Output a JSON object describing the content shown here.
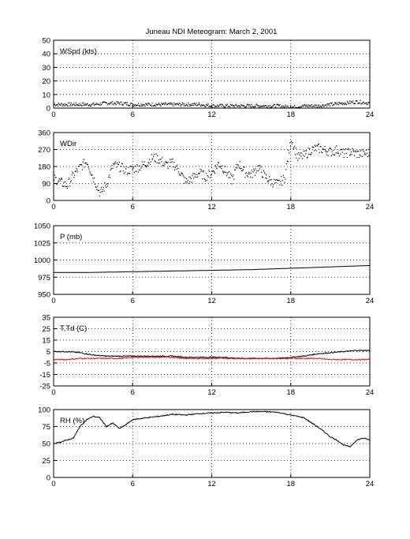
{
  "figure": {
    "title": "Juneau NDI Meteogram:       March  2, 2001"
  },
  "chart_data": [
    {
      "type": "scatter",
      "panel": "wind-speed",
      "label": "WSpd (kts)",
      "xlim": [
        0,
        24
      ],
      "ylim": [
        0,
        50
      ],
      "x_ticks": [
        0,
        6,
        12,
        18,
        24
      ],
      "y_ticks": [
        0,
        10,
        20,
        30,
        40,
        50
      ],
      "grid": true,
      "series": [
        {
          "color": "#000000",
          "x": [
            0,
            1,
            2,
            3,
            4,
            5,
            6,
            7,
            8,
            9,
            10,
            11,
            12,
            13,
            14,
            15,
            16,
            17,
            18,
            19,
            20,
            21,
            22,
            23,
            24
          ],
          "values": [
            3,
            3,
            3,
            3,
            4,
            4,
            3,
            3,
            3,
            3,
            3,
            3,
            2,
            2,
            2,
            2,
            2,
            2,
            1,
            2,
            2,
            3,
            4,
            5,
            4
          ]
        }
      ]
    },
    {
      "type": "scatter",
      "panel": "wind-direction",
      "label": "WDir",
      "xlim": [
        0,
        24
      ],
      "ylim": [
        0,
        360
      ],
      "x_ticks": [
        0,
        6,
        12,
        18,
        24
      ],
      "y_ticks": [
        0,
        90,
        180,
        270,
        360
      ],
      "grid": true,
      "series": [
        {
          "color": "#000000",
          "x": [
            0,
            0.5,
            1,
            1.5,
            2,
            2.5,
            3,
            3.5,
            4,
            4.5,
            5,
            5.5,
            6,
            6.5,
            7,
            7.5,
            8,
            8.5,
            9,
            9.5,
            10,
            10.5,
            11,
            11.5,
            12,
            12.5,
            13,
            13.5,
            14,
            14.5,
            15,
            15.5,
            16,
            16.5,
            17,
            17.5,
            18,
            18.5,
            19,
            19.5,
            20,
            20.5,
            21,
            21.5,
            22,
            22.5,
            23,
            23.5,
            24
          ],
          "values": [
            120,
            100,
            80,
            140,
            180,
            210,
            120,
            40,
            90,
            190,
            180,
            160,
            170,
            180,
            200,
            230,
            220,
            190,
            200,
            160,
            100,
            120,
            150,
            130,
            150,
            200,
            160,
            110,
            200,
            150,
            140,
            180,
            130,
            100,
            90,
            120,
            330,
            230,
            240,
            270,
            280,
            270,
            260,
            270,
            250,
            260,
            250,
            250,
            255
          ]
        }
      ]
    },
    {
      "type": "line",
      "panel": "pressure",
      "label": "P (mb)",
      "xlim": [
        0,
        24
      ],
      "ylim": [
        950,
        1050
      ],
      "x_ticks": [
        0,
        6,
        12,
        18,
        24
      ],
      "y_ticks": [
        950,
        975,
        1000,
        1025,
        1050
      ],
      "grid": true,
      "series": [
        {
          "color": "#000000",
          "x": [
            0,
            3,
            6,
            9,
            12,
            15,
            18,
            21,
            24
          ],
          "values": [
            982,
            982,
            983,
            984,
            985,
            986,
            988,
            990,
            992
          ]
        }
      ]
    },
    {
      "type": "line",
      "panel": "temperature-dewpoint",
      "label": "T,Td (C)",
      "xlim": [
        0,
        24
      ],
      "ylim": [
        -25,
        35
      ],
      "x_ticks": [
        0,
        6,
        12,
        18,
        24
      ],
      "y_ticks": [
        -25,
        -15,
        -5,
        5,
        15,
        25,
        35
      ],
      "grid": true,
      "series": [
        {
          "color": "#000000",
          "x": [
            0,
            1,
            2,
            3,
            4,
            5,
            6,
            7,
            8,
            9,
            10,
            11,
            12,
            13,
            14,
            15,
            16,
            17,
            18,
            19,
            20,
            21,
            22,
            23,
            24
          ],
          "values": [
            5,
            5,
            4,
            2,
            1,
            1,
            1,
            1,
            1,
            1,
            0,
            0,
            0,
            0,
            -1,
            -1,
            -1,
            -1,
            0,
            1,
            3,
            4,
            5,
            6,
            6
          ]
        },
        {
          "color": "#ff0000",
          "x": [
            0,
            1,
            2,
            3,
            4,
            5,
            6,
            7,
            8,
            9,
            10,
            11,
            12,
            13,
            14,
            15,
            16,
            17,
            18,
            19,
            20,
            21,
            22,
            23,
            24
          ],
          "values": [
            -2,
            -2,
            -1,
            -1,
            -1,
            -1,
            0,
            0,
            0,
            0,
            -1,
            -1,
            -1,
            -1,
            -1,
            -1,
            -1,
            -1,
            -1,
            -1,
            -1,
            -2,
            -2,
            -2,
            -2
          ]
        }
      ]
    },
    {
      "type": "line",
      "panel": "relative-humidity",
      "label": "RH (%)",
      "xlim": [
        0,
        24
      ],
      "ylim": [
        0,
        100
      ],
      "x_ticks": [
        0,
        6,
        12,
        18,
        24
      ],
      "y_ticks": [
        0,
        25,
        50,
        75,
        100
      ],
      "grid": true,
      "series": [
        {
          "color": "#000000",
          "x": [
            0,
            0.5,
            1,
            1.5,
            2,
            2.5,
            3,
            3.5,
            4,
            4.5,
            5,
            5.5,
            6,
            7,
            8,
            9,
            10,
            11,
            12,
            13,
            14,
            15,
            16,
            17,
            18,
            19,
            20,
            20.5,
            21,
            21.5,
            22,
            22.5,
            23,
            23.5,
            24
          ],
          "values": [
            50,
            52,
            55,
            58,
            75,
            85,
            90,
            88,
            75,
            80,
            72,
            78,
            85,
            88,
            90,
            93,
            92,
            94,
            95,
            96,
            95,
            97,
            97,
            96,
            92,
            88,
            75,
            68,
            60,
            55,
            48,
            45,
            55,
            58,
            55
          ]
        }
      ]
    }
  ]
}
